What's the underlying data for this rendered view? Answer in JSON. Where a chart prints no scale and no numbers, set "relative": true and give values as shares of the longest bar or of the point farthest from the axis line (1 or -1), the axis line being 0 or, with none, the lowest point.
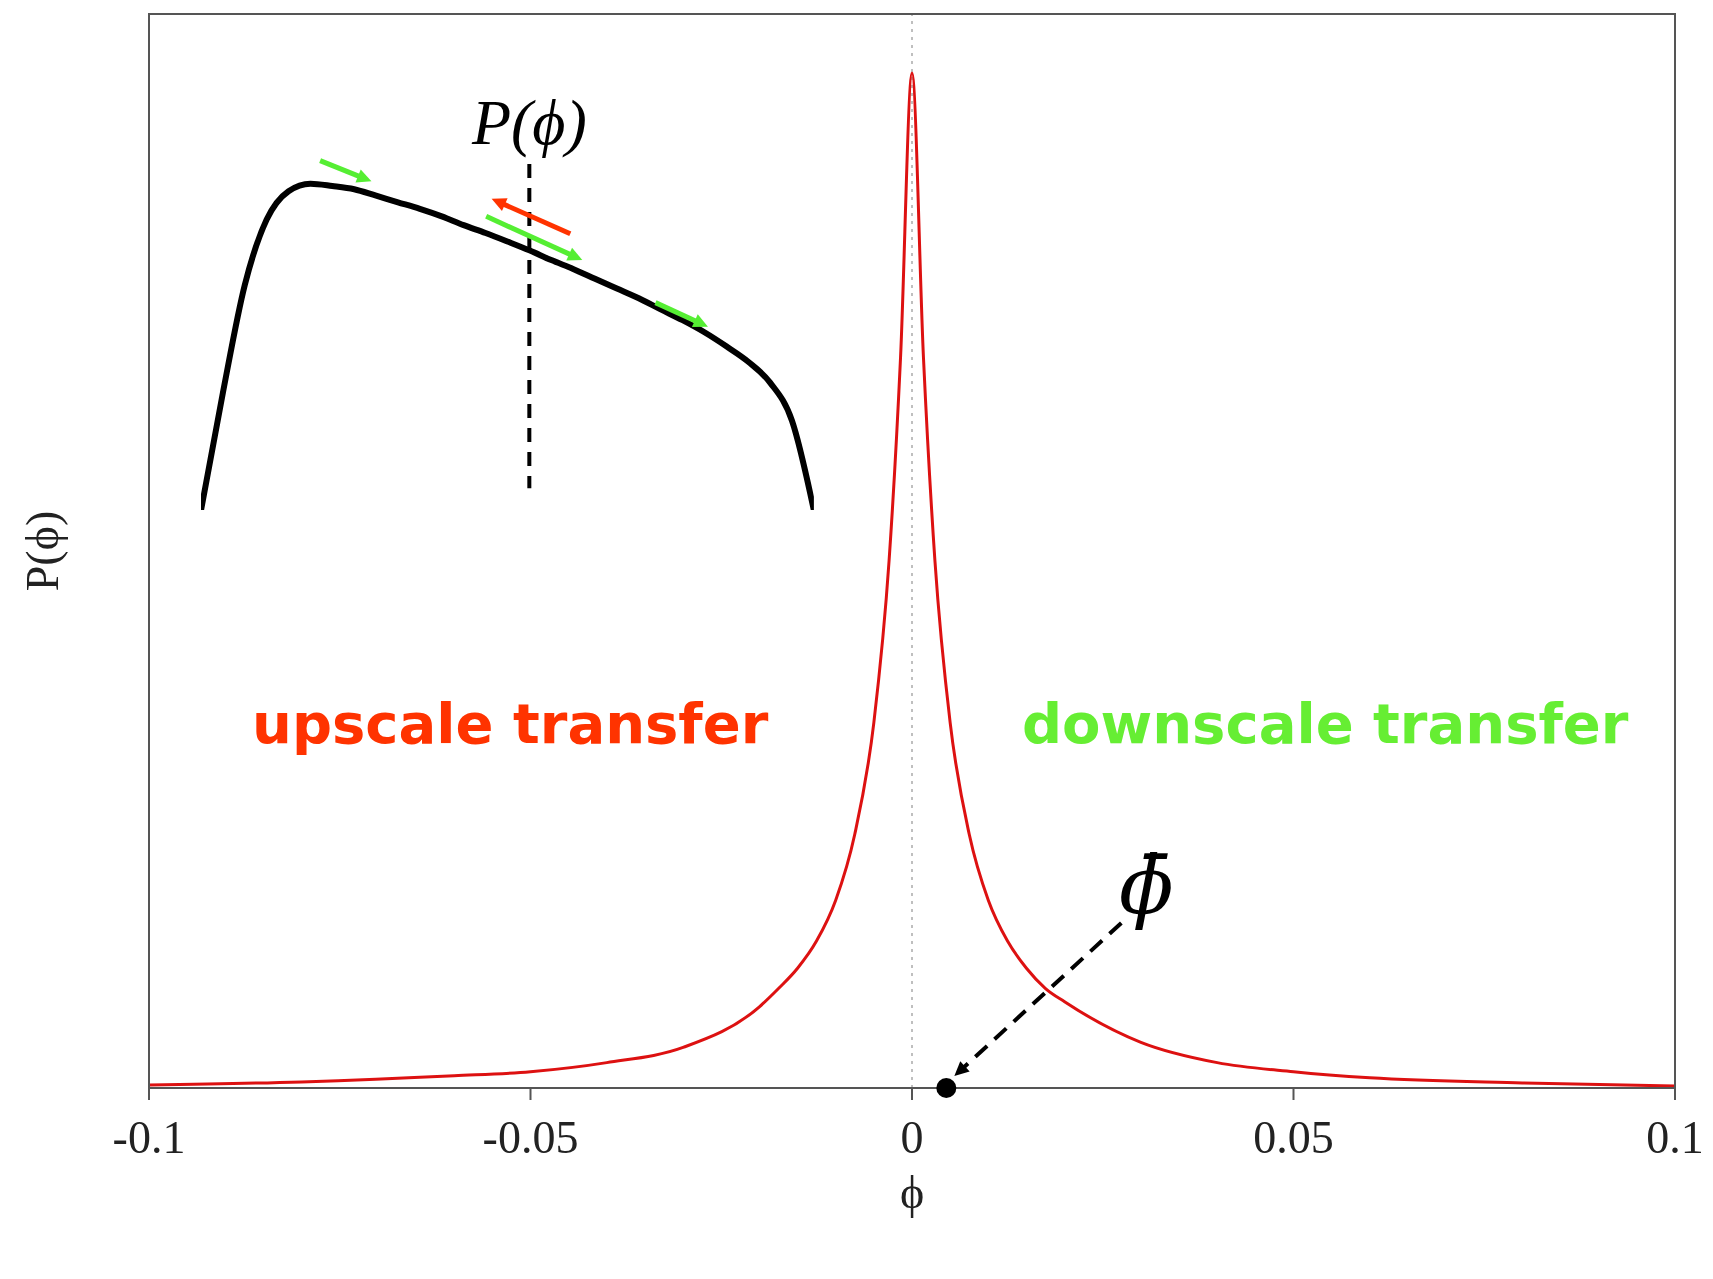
{
  "chart_data": [
    {
      "type": "line",
      "relative": true,
      "xlabel": "ϕ",
      "ylabel": "P(ϕ)",
      "x": [
        -0.1,
        -0.08,
        -0.06,
        -0.05,
        -0.04,
        -0.03,
        -0.02,
        -0.0175,
        -0.015,
        -0.0125,
        -0.01,
        -0.0075,
        -0.005,
        -0.003,
        -0.0015,
        0,
        0.0015,
        0.003,
        0.005,
        0.0075,
        0.01,
        0.0125,
        0.015,
        0.0175,
        0.02,
        0.03,
        0.04,
        0.05,
        0.06,
        0.08,
        0.1
      ],
      "series": [
        {
          "color": "#dd1111",
          "values": [
            0.003,
            0.006,
            0.012,
            0.016,
            0.025,
            0.04,
            0.08,
            0.098,
            0.118,
            0.145,
            0.185,
            0.25,
            0.36,
            0.52,
            0.72,
            1,
            0.72,
            0.52,
            0.36,
            0.25,
            0.185,
            0.145,
            0.118,
            0.098,
            0.085,
            0.045,
            0.025,
            0.016,
            0.01,
            0.005,
            0.002
          ]
        }
      ],
      "xlim": [
        -0.1,
        0.1
      ],
      "xticks": [
        -0.1,
        -0.05,
        0,
        0.05,
        0.1
      ],
      "marker": "none",
      "line_style": "solid",
      "ref_lines": [
        {
          "axis": "x",
          "value": 0,
          "color": "#aaaaaa",
          "line_style": "dotted"
        }
      ],
      "annotations": [
        "upscale transfer",
        "downscale transfer",
        {
          "text": "ϕ̄",
          "x": 0.0045,
          "y": 0
        }
      ]
    },
    {
      "type": "line",
      "relative": true,
      "categories": [
        null,
        null,
        null,
        null,
        null,
        null,
        null,
        null,
        null,
        null,
        null,
        null,
        null,
        null,
        null,
        null,
        null,
        null,
        null,
        null,
        null,
        null,
        null,
        null,
        null,
        null,
        null,
        null,
        null
      ],
      "series": [
        {
          "color": "#000000",
          "values": [
            0,
            0.36,
            0.69,
            0.89,
            0.977,
            1,
            0.993,
            0.983,
            0.963,
            0.943,
            0.923,
            0.9,
            0.873,
            0.849,
            0.823,
            0.796,
            0.766,
            0.739,
            0.709,
            0.679,
            0.649,
            0.615,
            0.582,
            0.545,
            0.502,
            0.455,
            0.391,
            0.274,
            0
          ]
        }
      ],
      "marker": "none",
      "line_style": "solid",
      "annotations": [
        "P(ϕ)"
      ]
    }
  ]
}
